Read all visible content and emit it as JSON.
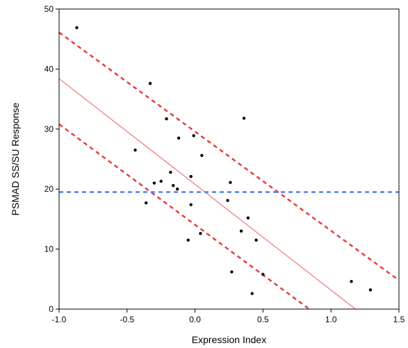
{
  "chart_data": {
    "type": "scatter",
    "title": "",
    "xlabel": "Expression Index",
    "ylabel": "PSMAD SS/SU Response",
    "xlim": [
      -1.0,
      1.5
    ],
    "ylim": [
      0,
      50
    ],
    "x_ticks": [
      -1.0,
      -0.5,
      0.0,
      0.5,
      1.0,
      1.5
    ],
    "x_tick_labels": [
      "-1.0",
      "-0.5",
      "0.0",
      "0.5",
      "1.0",
      "1.5"
    ],
    "y_ticks": [
      0,
      10,
      20,
      30,
      40,
      50
    ],
    "y_tick_labels": [
      "0",
      "10",
      "20",
      "30",
      "40",
      "50"
    ],
    "grid": false,
    "legend": "none",
    "series": [
      {
        "kind": "points",
        "color": "#000000",
        "points": [
          {
            "x": -0.87,
            "y": 46.9
          },
          {
            "x": -0.44,
            "y": 26.5
          },
          {
            "x": -0.36,
            "y": 17.7
          },
          {
            "x": -0.33,
            "y": 37.6
          },
          {
            "x": -0.3,
            "y": 21.0
          },
          {
            "x": -0.25,
            "y": 21.3
          },
          {
            "x": -0.21,
            "y": 31.7
          },
          {
            "x": -0.18,
            "y": 22.8
          },
          {
            "x": -0.16,
            "y": 20.6
          },
          {
            "x": -0.13,
            "y": 20.0
          },
          {
            "x": -0.12,
            "y": 28.5
          },
          {
            "x": -0.05,
            "y": 11.5
          },
          {
            "x": -0.03,
            "y": 17.4
          },
          {
            "x": -0.03,
            "y": 22.1
          },
          {
            "x": -0.01,
            "y": 28.9
          },
          {
            "x": 0.04,
            "y": 12.6
          },
          {
            "x": 0.05,
            "y": 25.6
          },
          {
            "x": 0.24,
            "y": 18.1
          },
          {
            "x": 0.26,
            "y": 21.1
          },
          {
            "x": 0.27,
            "y": 6.2
          },
          {
            "x": 0.34,
            "y": 13.0
          },
          {
            "x": 0.36,
            "y": 31.8
          },
          {
            "x": 0.39,
            "y": 15.2
          },
          {
            "x": 0.42,
            "y": 2.6
          },
          {
            "x": 0.45,
            "y": 11.5
          },
          {
            "x": 0.5,
            "y": 5.8
          },
          {
            "x": 1.15,
            "y": 4.6
          },
          {
            "x": 1.29,
            "y": 3.2
          }
        ]
      },
      {
        "kind": "line",
        "role": "regression-fit",
        "color": "#f08080",
        "style": "solid",
        "x": [
          -1.0,
          1.18
        ],
        "y": [
          38.4,
          0.0
        ]
      },
      {
        "kind": "line",
        "role": "confidence-upper",
        "color": "#e83c3c",
        "style": "dashed",
        "x": [
          -1.0,
          1.5
        ],
        "y": [
          46.1,
          4.8
        ]
      },
      {
        "kind": "line",
        "role": "confidence-lower",
        "color": "#e83c3c",
        "style": "dashed",
        "x": [
          -1.0,
          0.84
        ],
        "y": [
          30.8,
          0.0
        ]
      },
      {
        "kind": "line",
        "role": "mean-reference",
        "color": "#4f7ff5",
        "style": "dashed",
        "x": [
          -1.0,
          1.5
        ],
        "y": [
          19.5,
          19.5
        ]
      }
    ]
  }
}
